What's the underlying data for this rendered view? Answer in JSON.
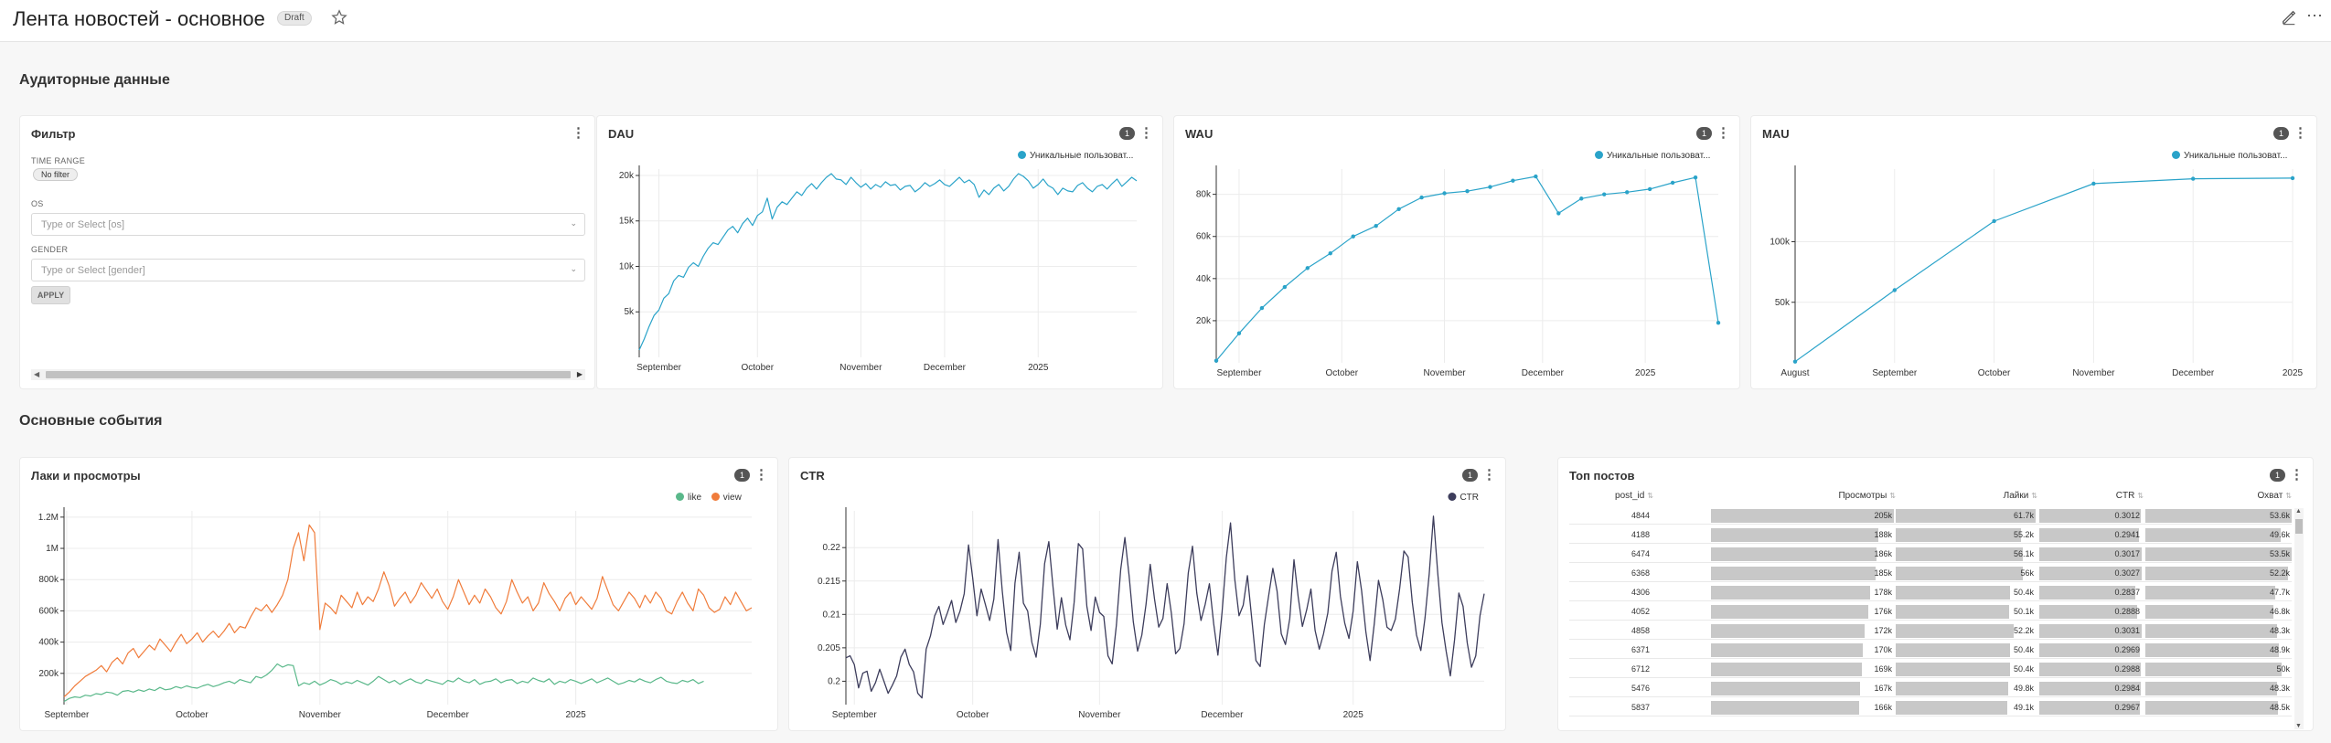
{
  "header": {
    "title": "Лента новостей - основное",
    "draft_label": "Draft",
    "icons": [
      "star-icon",
      "edit-icon",
      "more-icon"
    ]
  },
  "sections": {
    "audience": "Аудиторные данные",
    "events": "Основные события"
  },
  "filter_panel": {
    "title": "Фильтр",
    "time_range_label": "TIME RANGE",
    "time_range_value": "No filter",
    "os_label": "OS",
    "os_placeholder": "Type or Select [os]",
    "gender_label": "GENDER",
    "gender_placeholder": "Type or Select [gender]",
    "apply_label": "APPLY"
  },
  "colors": {
    "blue_line": "#2aa3c9",
    "like": "#5ab88a",
    "view": "#f07c3b",
    "ctr": "#3d3d5c",
    "filter_badge": "#555555"
  },
  "chart_data": [
    {
      "id": "dau",
      "title": "DAU",
      "filter_count": "1",
      "type": "line",
      "series": [
        {
          "name": "Уникальные пользоват...",
          "values": [
            800,
            2000,
            3400,
            4600,
            5200,
            6500,
            7000,
            8400,
            9000,
            8800,
            9900,
            10400,
            10000,
            11100,
            12000,
            12600,
            12400,
            13200,
            14000,
            14400,
            13700,
            14700,
            15300,
            14500,
            15600,
            16000,
            17500,
            15200,
            16500,
            17100,
            16800,
            17500,
            18200,
            17800,
            18600,
            19100,
            18500,
            19200,
            19800,
            20200,
            19600,
            19500,
            19000,
            19800,
            19200,
            18700,
            19100,
            18500,
            19000,
            18700,
            19300,
            18900,
            19000,
            18400,
            18800,
            18900,
            18200,
            18600,
            19200,
            18800,
            19100,
            19500,
            19000,
            18800,
            19300,
            19800,
            19200,
            19500,
            19000,
            17600,
            18400,
            17900,
            18600,
            19000,
            18300,
            18800,
            19600,
            20200,
            19900,
            19400,
            18600,
            19000,
            19600,
            18900,
            18600,
            17900,
            18600,
            18300,
            18200,
            18900,
            19200,
            18600,
            18200,
            18800,
            19000,
            18500,
            19100,
            19600,
            18800,
            19300,
            19800,
            19400
          ]
        }
      ],
      "x_ticks": [
        "September",
        "October",
        "November",
        "December",
        "2025"
      ],
      "x_tick_index": [
        4,
        24,
        45,
        62,
        81
      ],
      "y_ticks": [
        5000,
        10000,
        15000,
        20000
      ],
      "y_tick_labels": [
        "5k",
        "10k",
        "15k",
        "20k"
      ],
      "ylim": [
        0,
        20700
      ]
    },
    {
      "id": "wau",
      "title": "WAU",
      "filter_count": "1",
      "type": "line",
      "series": [
        {
          "name": "Уникальные пользоват...",
          "values": [
            1000,
            14000,
            26000,
            36000,
            45000,
            52000,
            60000,
            65000,
            73000,
            78500,
            80500,
            81500,
            83500,
            86500,
            88500,
            71000,
            78000,
            80000,
            81000,
            82500,
            85500,
            88000,
            19000
          ]
        }
      ],
      "x_ticks": [
        "September",
        "October",
        "November",
        "December",
        "2025"
      ],
      "x_tick_index": [
        1,
        5.5,
        10,
        14.3,
        18.8
      ],
      "y_ticks": [
        20000,
        40000,
        60000,
        80000
      ],
      "y_tick_labels": [
        "20k",
        "40k",
        "60k",
        "80k"
      ],
      "ylim": [
        0,
        92000
      ]
    },
    {
      "id": "mau",
      "title": "MAU",
      "filter_count": "1",
      "type": "line",
      "series": [
        {
          "name": "Уникальные пользоват...",
          "values": [
            1000,
            60000,
            117000,
            148000,
            152000,
            152500
          ]
        }
      ],
      "x_ticks": [
        "August",
        "September",
        "October",
        "November",
        "December",
        "2025"
      ],
      "x_tick_index": [
        0,
        1,
        2,
        3,
        4,
        5
      ],
      "y_ticks": [
        50000,
        100000
      ],
      "y_tick_labels": [
        "50k",
        "100k"
      ],
      "ylim": [
        0,
        160000
      ]
    },
    {
      "id": "likes_views",
      "title": "Лаки и просмотры",
      "filter_count": "1",
      "type": "line",
      "series": [
        {
          "name": "like",
          "values": [
            20000,
            40000,
            50000,
            45000,
            60000,
            55000,
            70000,
            65000,
            80000,
            75000,
            60000,
            85000,
            90000,
            80000,
            95000,
            85000,
            100000,
            90000,
            110000,
            95000,
            100000,
            115000,
            105000,
            120000,
            110000,
            105000,
            120000,
            130000,
            115000,
            125000,
            140000,
            150000,
            135000,
            160000,
            150000,
            140000,
            180000,
            170000,
            190000,
            220000,
            260000,
            240000,
            255000,
            250000,
            120000,
            140000,
            130000,
            150000,
            125000,
            140000,
            160000,
            150000,
            130000,
            145000,
            135000,
            155000,
            140000,
            125000,
            150000,
            180000,
            160000,
            140000,
            155000,
            130000,
            150000,
            165000,
            145000,
            135000,
            160000,
            150000,
            140000,
            130000,
            155000,
            145000,
            170000,
            150000,
            140000,
            160000,
            130000,
            145000,
            150000,
            165000,
            140000,
            155000,
            160000,
            135000,
            150000,
            140000,
            170000,
            155000,
            145000,
            165000,
            130000,
            150000,
            140000,
            160000,
            150000,
            135000,
            150000,
            165000,
            140000,
            155000,
            170000,
            150000,
            130000,
            140000,
            155000,
            145000,
            165000,
            150000,
            140000,
            160000,
            175000,
            150000,
            140000,
            135000,
            155000,
            145000,
            160000,
            135000,
            150000
          ]
        },
        {
          "name": "view",
          "values": [
            50000,
            80000,
            120000,
            150000,
            180000,
            200000,
            220000,
            250000,
            210000,
            270000,
            300000,
            260000,
            330000,
            360000,
            300000,
            340000,
            380000,
            350000,
            420000,
            380000,
            340000,
            400000,
            450000,
            390000,
            420000,
            460000,
            400000,
            440000,
            470000,
            430000,
            470000,
            520000,
            460000,
            500000,
            490000,
            560000,
            620000,
            600000,
            640000,
            590000,
            640000,
            700000,
            800000,
            1000000,
            1100000,
            920000,
            1150000,
            1100000,
            480000,
            650000,
            620000,
            580000,
            700000,
            660000,
            620000,
            720000,
            640000,
            690000,
            660000,
            740000,
            850000,
            760000,
            630000,
            680000,
            720000,
            650000,
            700000,
            780000,
            730000,
            680000,
            740000,
            660000,
            610000,
            690000,
            800000,
            720000,
            640000,
            700000,
            650000,
            740000,
            690000,
            620000,
            580000,
            660000,
            800000,
            720000,
            650000,
            690000,
            600000,
            650000,
            780000,
            710000,
            660000,
            600000,
            680000,
            720000,
            640000,
            690000,
            650000,
            610000,
            680000,
            820000,
            730000,
            640000,
            600000,
            660000,
            720000,
            680000,
            620000,
            700000,
            650000,
            720000,
            680000,
            600000,
            580000,
            660000,
            720000,
            650000,
            600000,
            740000,
            700000,
            620000,
            590000,
            610000,
            690000,
            640000,
            720000,
            660000,
            600000,
            620000
          ]
        }
      ],
      "x_ticks": [
        "September",
        "October",
        "November",
        "December",
        "2025"
      ],
      "x_tick_index": [
        0.5,
        24,
        48,
        72,
        96
      ],
      "y_ticks": [
        200000,
        400000,
        600000,
        800000,
        1000000,
        1200000
      ],
      "y_tick_labels": [
        "200k",
        "400k",
        "600k",
        "800k",
        "1M",
        "1.2M"
      ],
      "ylim": [
        0,
        1240000
      ]
    },
    {
      "id": "ctr",
      "title": "CTR",
      "filter_count": "1",
      "type": "line",
      "series": [
        {
          "name": "CTR",
          "values": [
            0.2035,
            0.2038,
            0.2025,
            0.199,
            0.2012,
            0.2015,
            0.1985,
            0.1998,
            0.2018,
            0.2,
            0.1982,
            0.1994,
            0.2008,
            0.2036,
            0.2048,
            0.2025,
            0.2014,
            0.1982,
            0.1975,
            0.2048,
            0.2068,
            0.2098,
            0.2112,
            0.2085,
            0.2102,
            0.2121,
            0.2088,
            0.2105,
            0.2131,
            0.2204,
            0.2154,
            0.2098,
            0.2138,
            0.2115,
            0.2091,
            0.2123,
            0.2212,
            0.2135,
            0.2073,
            0.2046,
            0.2147,
            0.2193,
            0.2117,
            0.2105,
            0.2058,
            0.2036,
            0.2085,
            0.2176,
            0.2209,
            0.2141,
            0.2078,
            0.2125,
            0.2084,
            0.2062,
            0.2118,
            0.2206,
            0.2198,
            0.2112,
            0.2076,
            0.2126,
            0.2103,
            0.2097,
            0.2038,
            0.2026,
            0.2084,
            0.2167,
            0.2215,
            0.2158,
            0.2089,
            0.2045,
            0.2069,
            0.2115,
            0.2175,
            0.2124,
            0.2081,
            0.2094,
            0.2146,
            0.2102,
            0.2041,
            0.2049,
            0.2086,
            0.2162,
            0.2202,
            0.2132,
            0.2091,
            0.2115,
            0.2146,
            0.2086,
            0.2039,
            0.2104,
            0.2185,
            0.2237,
            0.2152,
            0.2098,
            0.2114,
            0.2158,
            0.2094,
            0.2031,
            0.2022,
            0.2085,
            0.2128,
            0.2169,
            0.2135,
            0.2071,
            0.2055,
            0.2094,
            0.2182,
            0.2126,
            0.2082,
            0.2107,
            0.2138,
            0.2076,
            0.2048,
            0.2071,
            0.2102,
            0.2165,
            0.2193,
            0.2127,
            0.2087,
            0.2064,
            0.2105,
            0.2179,
            0.2136,
            0.2074,
            0.2031,
            0.2086,
            0.2151,
            0.2122,
            0.2081,
            0.2076,
            0.2093,
            0.2138,
            0.2195,
            0.2186,
            0.2118,
            0.2069,
            0.2046,
            0.2095,
            0.2161,
            0.2247,
            0.2162,
            0.2088,
            0.2045,
            0.2008,
            0.2062,
            0.2132,
            0.2112,
            0.2057,
            0.2021,
            0.2038,
            0.2098,
            0.2131
          ]
        }
      ],
      "x_ticks": [
        "September",
        "October",
        "November",
        "December",
        "2025"
      ],
      "x_tick_index": [
        2,
        30,
        60,
        89,
        120
      ],
      "y_ticks": [
        0.2,
        0.205,
        0.21,
        0.215,
        0.22
      ],
      "y_tick_labels": [
        "0.2",
        "0.205",
        "0.21",
        "0.215",
        "0.22"
      ],
      "ylim": [
        0.1965,
        0.2255
      ]
    },
    {
      "id": "top_posts",
      "title": "Топ постов",
      "filter_count": "1",
      "type": "table",
      "columns": [
        "post_id",
        "Просмотры",
        "Лайки",
        "CTR",
        "Охват"
      ],
      "rows": [
        [
          "4844",
          "205k",
          "61.7k",
          "0.3012",
          "53.6k"
        ],
        [
          "4188",
          "188k",
          "55.2k",
          "0.2941",
          "49.6k"
        ],
        [
          "6474",
          "186k",
          "56.1k",
          "0.3017",
          "53.5k"
        ],
        [
          "6368",
          "185k",
          "56k",
          "0.3027",
          "52.2k"
        ],
        [
          "4306",
          "178k",
          "50.4k",
          "0.2837",
          "47.7k"
        ],
        [
          "4052",
          "176k",
          "50.1k",
          "0.2888",
          "46.8k"
        ],
        [
          "4858",
          "172k",
          "52.2k",
          "0.3031",
          "48.3k"
        ],
        [
          "6371",
          "170k",
          "50.4k",
          "0.2969",
          "48.9k"
        ],
        [
          "6712",
          "169k",
          "50.4k",
          "0.2988",
          "50k"
        ],
        [
          "5476",
          "167k",
          "49.8k",
          "0.2984",
          "48.3k"
        ],
        [
          "5837",
          "166k",
          "49.1k",
          "0.2967",
          "48.5k"
        ]
      ],
      "bar_fraction": [
        [
          1.0,
          1.0,
          0.994,
          1.0
        ],
        [
          0.917,
          0.895,
          0.975,
          0.925
        ],
        [
          0.907,
          0.909,
          1.0,
          0.998
        ],
        [
          0.902,
          0.908,
          1.0,
          0.974
        ],
        [
          0.868,
          0.817,
          0.94,
          0.89
        ],
        [
          0.859,
          0.812,
          0.957,
          0.873
        ],
        [
          0.839,
          0.846,
          1.0,
          0.901
        ],
        [
          0.829,
          0.817,
          0.984,
          0.912
        ],
        [
          0.824,
          0.817,
          0.99,
          0.933
        ],
        [
          0.815,
          0.807,
          0.989,
          0.901
        ],
        [
          0.81,
          0.796,
          0.983,
          0.905
        ]
      ]
    }
  ]
}
